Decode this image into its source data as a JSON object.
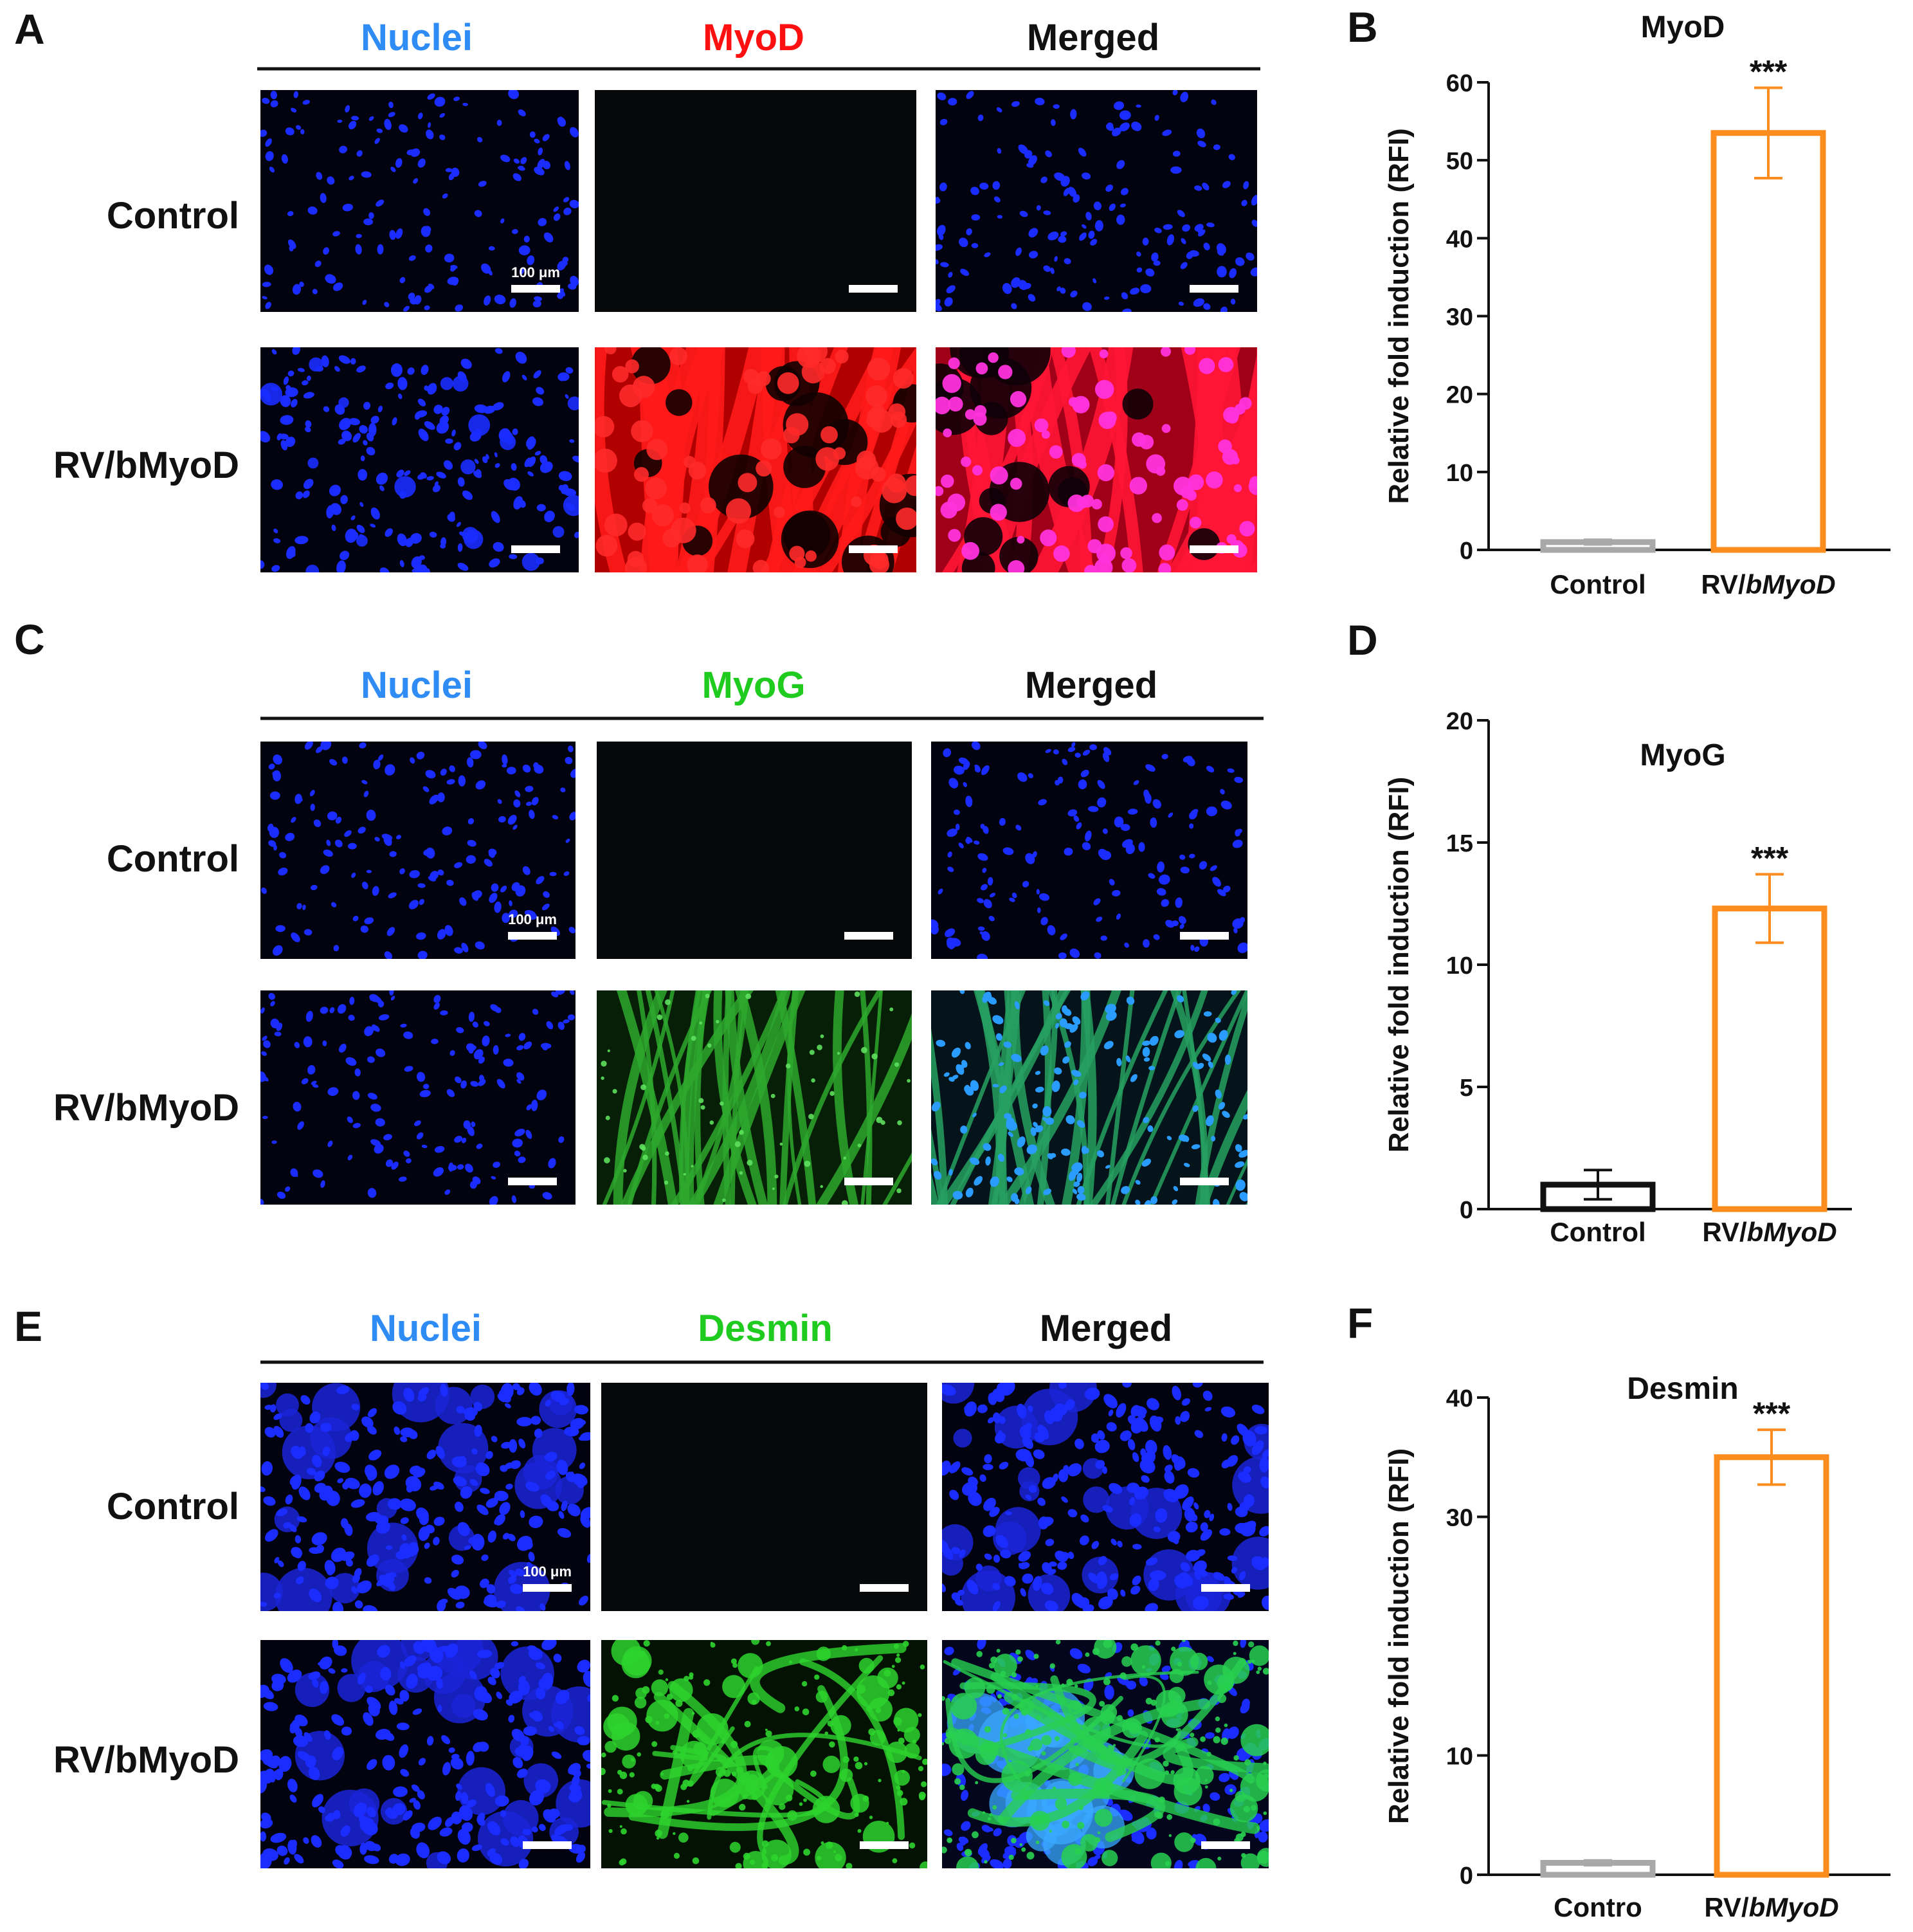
{
  "colors": {
    "nuclei": "#2f8cf5",
    "myod": "#ff1010",
    "green": "#1ecb1e",
    "black": "#111111",
    "orange": "#fb8c1d",
    "gray": "#a8a8a8",
    "scale_bar": "#ffffff"
  },
  "panels": [
    {
      "letter": "A",
      "headers": [
        "Nuclei",
        "MyoD",
        "Merged"
      ],
      "header_colors": [
        "nuclei",
        "myod",
        "black"
      ],
      "rows": [
        "Control",
        "RV/bMyoD"
      ],
      "scale_label": "100 μm",
      "images": [
        [
          "nuclei-sparse-icon",
          "empty-dark-icon",
          "nuclei-sparse-icon"
        ],
        [
          "nuclei-dense-icon",
          "red-fibers-icon",
          "magenta-merged-icon"
        ]
      ]
    },
    {
      "letter": "C",
      "headers": [
        "Nuclei",
        "MyoG",
        "Merged"
      ],
      "header_colors": [
        "nuclei",
        "green",
        "black"
      ],
      "rows": [
        "Control",
        "RV/bMyoD"
      ],
      "scale_label": "100 μm",
      "images": [
        [
          "nuclei-sparse-icon",
          "empty-dark-icon",
          "nuclei-sparse-icon"
        ],
        [
          "nuclei-sparse-icon",
          "green-fibers-icon",
          "cyan-merged-icon"
        ]
      ]
    },
    {
      "letter": "E",
      "headers": [
        "Nuclei",
        "Desmin",
        "Merged"
      ],
      "header_colors": [
        "nuclei",
        "green",
        "black"
      ],
      "rows": [
        "Control",
        "RV/bMyoD"
      ],
      "scale_label": "100 μm",
      "images": [
        [
          "nuclei-clustered-icon",
          "empty-dark-icon",
          "nuclei-clustered-icon"
        ],
        [
          "nuclei-clustered-icon",
          "green-network-icon",
          "cyan-network-icon"
        ]
      ]
    }
  ],
  "chart_data": [
    {
      "letter": "B",
      "type": "bar",
      "title": "MyoD",
      "ylabel": "Relative fold induction (RFI)",
      "categories": [
        "Control",
        "RV/bMyoD"
      ],
      "values": [
        1,
        53.5
      ],
      "errors": [
        0.3,
        5.8
      ],
      "bar_colors": [
        "gray",
        "orange"
      ],
      "significance": [
        "",
        "***"
      ],
      "ylim": [
        0,
        60
      ],
      "yticks": [
        0,
        10,
        20,
        30,
        40,
        50,
        60
      ]
    },
    {
      "letter": "D",
      "type": "bar",
      "title": "MyoG",
      "ylabel": "Relative fold induction (RFI)",
      "categories": [
        "Control",
        "RV/bMyoD"
      ],
      "values": [
        1,
        12.3
      ],
      "errors": [
        0.6,
        1.4
      ],
      "bar_colors": [
        "black",
        "orange"
      ],
      "significance": [
        "",
        "***"
      ],
      "ylim": [
        0,
        20
      ],
      "yticks": [
        0,
        5,
        10,
        15,
        20
      ]
    },
    {
      "letter": "F",
      "type": "bar",
      "title": "Desmin",
      "ylabel": "Relative fold induction (RFI)",
      "categories": [
        "Contro",
        "RV/bMyoD"
      ],
      "values": [
        1,
        35
      ],
      "errors": [
        0.2,
        2.3
      ],
      "bar_colors": [
        "gray",
        "orange"
      ],
      "significance": [
        "",
        "***"
      ],
      "ylim": [
        0,
        40
      ],
      "yticks": [
        0,
        10,
        30,
        40
      ]
    }
  ]
}
